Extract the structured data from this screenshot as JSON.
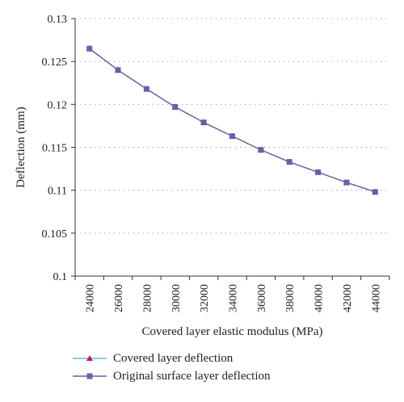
{
  "chart_data": {
    "type": "line",
    "xlabel": "Covered layer elastic modulus (MPa)",
    "ylabel": "Deflection (mm)",
    "x": [
      24000,
      26000,
      28000,
      30000,
      32000,
      34000,
      36000,
      38000,
      40000,
      42000,
      44000
    ],
    "xticks": [
      "24000",
      "26000",
      "28000",
      "30000",
      "32000",
      "34000",
      "36000",
      "38000",
      "40000",
      "42000",
      "44000"
    ],
    "yticks": [
      "0.1",
      "0.105",
      "0.11",
      "0.115",
      "0.12",
      "0.125",
      "0.13"
    ],
    "ylim": [
      0.1,
      0.13
    ],
    "grid": "horizontal dotted",
    "legend_position": "bottom",
    "series": [
      {
        "name": "Covered layer deflection",
        "color": "#c0185a",
        "marker": "triangle",
        "values": [
          0.1265,
          0.124,
          0.1218,
          0.1197,
          0.1179,
          0.1163,
          0.1147,
          0.1133,
          0.1121,
          0.1109,
          0.1098
        ]
      },
      {
        "name": "Original surface layer deflection",
        "color": "#6b5fa8",
        "marker": "square",
        "values": [
          0.1265,
          0.124,
          0.1218,
          0.1197,
          0.1179,
          0.1163,
          0.1147,
          0.1133,
          0.1121,
          0.1109,
          0.1098
        ]
      }
    ]
  }
}
